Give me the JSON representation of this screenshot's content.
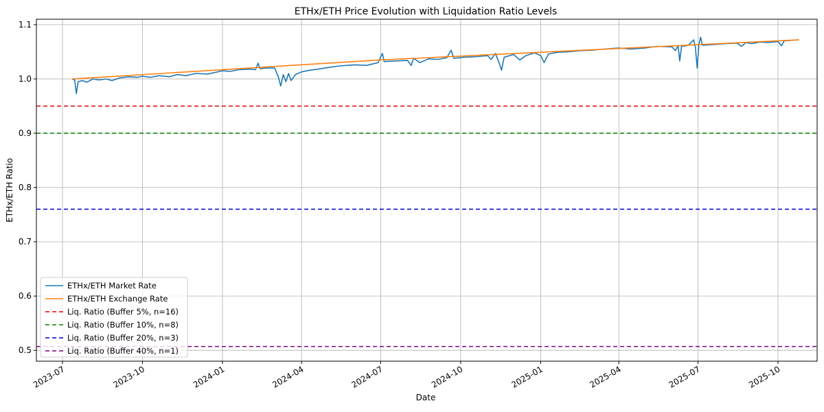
{
  "chart_data": {
    "type": "line",
    "title": "ETHx/ETH Price Evolution with Liquidation Ratio Levels",
    "xlabel": "Date",
    "ylabel": "ETHx/ETH Ratio",
    "xlim": [
      "2023-06-01",
      "2025-11-15"
    ],
    "ylim": [
      0.48,
      1.11
    ],
    "x_ticks": [
      "2023-07",
      "2023-10",
      "2024-01",
      "2024-04",
      "2024-07",
      "2024-10",
      "2025-01",
      "2025-04",
      "2025-07",
      "2025-10"
    ],
    "x_tick_dates": [
      "2023-07-01",
      "2023-10-01",
      "2024-01-01",
      "2024-04-01",
      "2024-07-01",
      "2024-10-01",
      "2025-01-01",
      "2025-04-01",
      "2025-07-01",
      "2025-10-01"
    ],
    "y_ticks": [
      "0.5",
      "0.6",
      "0.7",
      "0.8",
      "0.9",
      "1.0",
      "1.1"
    ],
    "y_tick_values": [
      0.5,
      0.6,
      0.7,
      0.8,
      0.9,
      1.0,
      1.1
    ],
    "grid": true,
    "legend_position": "bottom-left",
    "series": [
      {
        "name": "ETHx/ETH Market Rate",
        "color": "#1f77b4",
        "points": [
          [
            "2023-07-12",
            1.0
          ],
          [
            "2023-07-15",
            0.998
          ],
          [
            "2023-07-17",
            0.973
          ],
          [
            "2023-07-19",
            0.995
          ],
          [
            "2023-07-24",
            0.997
          ],
          [
            "2023-07-29",
            0.994
          ],
          [
            "2023-08-05",
            1.0
          ],
          [
            "2023-08-12",
            0.998
          ],
          [
            "2023-08-20",
            1.0
          ],
          [
            "2023-08-27",
            0.997
          ],
          [
            "2023-09-05",
            1.002
          ],
          [
            "2023-09-15",
            1.004
          ],
          [
            "2023-09-25",
            1.003
          ],
          [
            "2023-10-01",
            1.005
          ],
          [
            "2023-10-10",
            1.003
          ],
          [
            "2023-10-20",
            1.006
          ],
          [
            "2023-11-01",
            1.004
          ],
          [
            "2023-11-10",
            1.008
          ],
          [
            "2023-11-20",
            1.006
          ],
          [
            "2023-12-01",
            1.01
          ],
          [
            "2023-12-15",
            1.009
          ],
          [
            "2024-01-01",
            1.015
          ],
          [
            "2024-01-10",
            1.014
          ],
          [
            "2024-01-20",
            1.017
          ],
          [
            "2024-02-01",
            1.018
          ],
          [
            "2024-02-08",
            1.017
          ],
          [
            "2024-02-11",
            1.029
          ],
          [
            "2024-02-13",
            1.019
          ],
          [
            "2024-02-20",
            1.02
          ],
          [
            "2024-03-01",
            1.02
          ],
          [
            "2024-03-05",
            1.005
          ],
          [
            "2024-03-08",
            0.987
          ],
          [
            "2024-03-11",
            1.008
          ],
          [
            "2024-03-14",
            0.995
          ],
          [
            "2024-03-17",
            1.01
          ],
          [
            "2024-03-20",
            0.997
          ],
          [
            "2024-03-25",
            1.008
          ],
          [
            "2024-04-01",
            1.013
          ],
          [
            "2024-04-10",
            1.016
          ],
          [
            "2024-04-20",
            1.018
          ],
          [
            "2024-05-01",
            1.021
          ],
          [
            "2024-05-15",
            1.024
          ],
          [
            "2024-06-01",
            1.026
          ],
          [
            "2024-06-15",
            1.025
          ],
          [
            "2024-06-28",
            1.03
          ],
          [
            "2024-07-03",
            1.047
          ],
          [
            "2024-07-05",
            1.032
          ],
          [
            "2024-07-15",
            1.033
          ],
          [
            "2024-08-01",
            1.034
          ],
          [
            "2024-08-05",
            1.025
          ],
          [
            "2024-08-08",
            1.038
          ],
          [
            "2024-08-15",
            1.03
          ],
          [
            "2024-08-25",
            1.037
          ],
          [
            "2024-09-05",
            1.036
          ],
          [
            "2024-09-15",
            1.039
          ],
          [
            "2024-09-20",
            1.053
          ],
          [
            "2024-09-23",
            1.038
          ],
          [
            "2024-10-05",
            1.04
          ],
          [
            "2024-10-20",
            1.041
          ],
          [
            "2024-11-01",
            1.043
          ],
          [
            "2024-11-05",
            1.036
          ],
          [
            "2024-11-10",
            1.047
          ],
          [
            "2024-11-15",
            1.026
          ],
          [
            "2024-11-17",
            1.016
          ],
          [
            "2024-11-20",
            1.04
          ],
          [
            "2024-12-01",
            1.045
          ],
          [
            "2024-12-08",
            1.035
          ],
          [
            "2024-12-15",
            1.043
          ],
          [
            "2024-12-25",
            1.048
          ],
          [
            "2025-01-01",
            1.043
          ],
          [
            "2025-01-05",
            1.03
          ],
          [
            "2025-01-10",
            1.046
          ],
          [
            "2025-01-20",
            1.049
          ],
          [
            "2025-02-01",
            1.05
          ],
          [
            "2025-02-15",
            1.052
          ],
          [
            "2025-03-01",
            1.053
          ],
          [
            "2025-03-15",
            1.055
          ],
          [
            "2025-04-01",
            1.057
          ],
          [
            "2025-04-15",
            1.055
          ],
          [
            "2025-05-01",
            1.057
          ],
          [
            "2025-05-15",
            1.06
          ],
          [
            "2025-06-01",
            1.059
          ],
          [
            "2025-06-05",
            1.052
          ],
          [
            "2025-06-08",
            1.061
          ],
          [
            "2025-06-10",
            1.033
          ],
          [
            "2025-06-12",
            1.06
          ],
          [
            "2025-06-20",
            1.062
          ],
          [
            "2025-06-26",
            1.072
          ],
          [
            "2025-06-28",
            1.058
          ],
          [
            "2025-06-30",
            1.02
          ],
          [
            "2025-07-02",
            1.063
          ],
          [
            "2025-07-04",
            1.077
          ],
          [
            "2025-07-06",
            1.062
          ],
          [
            "2025-07-15",
            1.063
          ],
          [
            "2025-08-01",
            1.065
          ],
          [
            "2025-08-15",
            1.066
          ],
          [
            "2025-08-20",
            1.06
          ],
          [
            "2025-08-25",
            1.067
          ],
          [
            "2025-09-01",
            1.065
          ],
          [
            "2025-09-10",
            1.068
          ],
          [
            "2025-09-20",
            1.067
          ],
          [
            "2025-10-01",
            1.069
          ],
          [
            "2025-10-05",
            1.061
          ],
          [
            "2025-10-08",
            1.07
          ],
          [
            "2025-10-15",
            1.071
          ],
          [
            "2025-10-25",
            1.072
          ]
        ]
      },
      {
        "name": "ETHx/ETH Exchange Rate",
        "color": "#ff7f0e",
        "points": [
          [
            "2023-07-12",
            1.0
          ],
          [
            "2024-07-01",
            1.035
          ],
          [
            "2025-10-25",
            1.072
          ]
        ]
      },
      {
        "name": "Liq. Ratio (Buffer 5%, n=16)",
        "color": "#e00000",
        "style": "dashed",
        "y": 0.95
      },
      {
        "name": "Liq. Ratio (Buffer 10%, n=8)",
        "color": "#008000",
        "style": "dashed",
        "y": 0.9
      },
      {
        "name": "Liq. Ratio (Buffer 20%, n=3)",
        "color": "#0000cc",
        "style": "dashed",
        "y": 0.76
      },
      {
        "name": "Liq. Ratio (Buffer 40%, n=1)",
        "color": "#800080",
        "style": "dashed",
        "y": 0.507
      }
    ]
  }
}
